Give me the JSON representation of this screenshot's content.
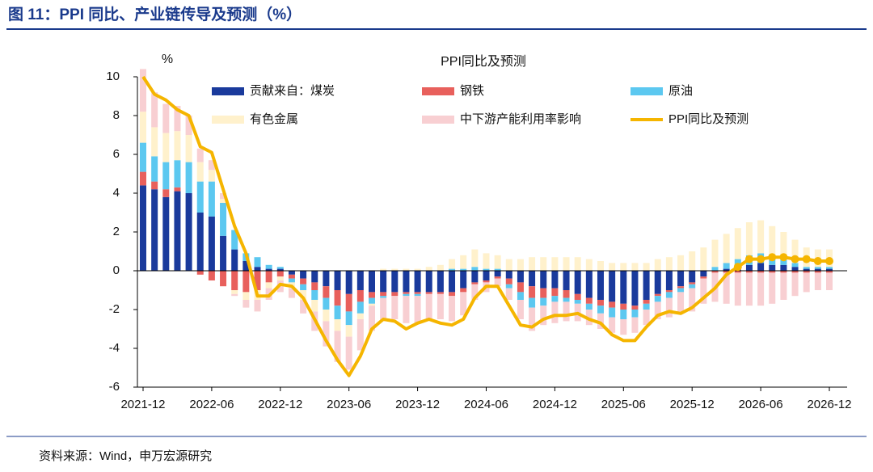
{
  "header": {
    "title": "图 11：PPI 同比、产业链传导及预测（%）"
  },
  "footer": {
    "source": "资料来源：Wind，申万宏源研究"
  },
  "chart_data": {
    "type": "bar-line",
    "title": "PPI同比及预测",
    "y_label": "%",
    "categories": [
      "2021-12",
      null,
      null,
      null,
      null,
      null,
      "2022-06",
      null,
      null,
      null,
      null,
      null,
      "2022-12",
      null,
      null,
      null,
      null,
      null,
      "2023-06",
      null,
      null,
      null,
      null,
      null,
      "2023-12",
      null,
      null,
      null,
      null,
      null,
      "2024-06",
      null,
      null,
      null,
      null,
      null,
      "2024-12",
      null,
      null,
      null,
      null,
      null,
      "2025-06",
      null,
      null,
      null,
      null,
      null,
      "2025-12",
      null,
      null,
      null,
      null,
      null,
      "2026-06",
      null,
      null,
      null,
      null,
      null,
      "2026-12"
    ],
    "ylim": [
      -6,
      10
    ],
    "yticks": [
      -6,
      -4,
      -2,
      0,
      2,
      4,
      6,
      8,
      10
    ],
    "series": [
      {
        "name": "贡献来自：煤炭",
        "color": "#1a3a9c",
        "values": [
          4.4,
          4.2,
          3.8,
          4.1,
          4.0,
          3.0,
          2.8,
          1.8,
          1.1,
          0.5,
          0.2,
          0.1,
          0.1,
          -0.2,
          -0.4,
          -0.6,
          -0.8,
          -1.0,
          -1.2,
          -1.0,
          -1.1,
          -1.1,
          -1.1,
          -1.1,
          -1.1,
          -1.1,
          -1.1,
          -1.1,
          -0.9,
          -0.6,
          -0.5,
          -0.3,
          -0.4,
          -0.6,
          -0.8,
          -0.9,
          -0.9,
          -1.0,
          -1.2,
          -1.4,
          -1.5,
          -1.6,
          -1.7,
          -1.8,
          -1.5,
          -1.2,
          -1.0,
          -0.8,
          -0.6,
          -0.3,
          0,
          0.1,
          0.2,
          0.3,
          0.4,
          0.3,
          0.3,
          0.2,
          0.1,
          0.1,
          0.1
        ]
      },
      {
        "name": "钢铁",
        "color": "#e8605c",
        "values": [
          0.7,
          0.4,
          0.4,
          0.2,
          0,
          -0.2,
          -0.5,
          -0.8,
          -1.0,
          -1.1,
          -1.0,
          -0.6,
          -0.3,
          -0.2,
          -0.3,
          -0.4,
          -0.6,
          -0.8,
          -0.9,
          -0.6,
          -0.3,
          -0.2,
          -0.2,
          -0.1,
          -0.1,
          -0.1,
          -0.1,
          -0.2,
          -0.2,
          -0.1,
          -0.1,
          -0.1,
          -0.3,
          -0.5,
          -0.6,
          -0.5,
          -0.4,
          -0.4,
          -0.3,
          -0.3,
          -0.3,
          -0.3,
          -0.3,
          -0.2,
          -0.2,
          -0.1,
          -0.1,
          -0.1,
          -0.1,
          -0.1,
          -0.1,
          -0.1,
          -0.1,
          -0.1,
          -0.1,
          -0.1,
          -0.1,
          -0.1,
          -0.1,
          -0.1,
          -0.1
        ]
      },
      {
        "name": "原油",
        "color": "#5cc8f0",
        "values": [
          1.5,
          1.3,
          1.4,
          1.4,
          1.6,
          1.6,
          1.8,
          1.7,
          1.0,
          0.4,
          0.5,
          0.2,
          0.1,
          -0.2,
          -0.3,
          -0.5,
          -0.6,
          -0.7,
          -0.7,
          -0.6,
          -0.3,
          -0.1,
          0,
          -0.1,
          -0.1,
          0,
          0,
          0.1,
          0.1,
          0.2,
          0.1,
          0.1,
          -0.2,
          -0.4,
          -0.5,
          -0.4,
          -0.3,
          -0.2,
          -0.2,
          -0.3,
          -0.4,
          -0.5,
          -0.5,
          -0.4,
          -0.3,
          -0.3,
          -0.3,
          -0.2,
          -0.2,
          0,
          0.2,
          0.3,
          0.4,
          0.5,
          0.5,
          0.4,
          0.3,
          0.2,
          0.1,
          0.1,
          0.1
        ]
      },
      {
        "name": "有色金属",
        "color": "#fff1cc",
        "values": [
          1.6,
          1.5,
          1.5,
          1.5,
          1.4,
          1.0,
          0.6,
          0.2,
          -0.2,
          -0.4,
          -0.5,
          -0.3,
          -0.2,
          -0.3,
          -0.5,
          -0.6,
          -0.6,
          -0.6,
          -0.6,
          -0.3,
          -0.1,
          0.1,
          0.1,
          0.1,
          0.1,
          0.2,
          0.3,
          0.5,
          0.7,
          0.9,
          0.8,
          0.7,
          0.6,
          0.6,
          0.7,
          0.7,
          0.7,
          0.7,
          0.7,
          0.6,
          0.5,
          0.4,
          0.4,
          0.4,
          0.4,
          0.6,
          0.7,
          0.8,
          1.0,
          1.2,
          1.4,
          1.5,
          1.6,
          1.7,
          1.7,
          1.6,
          1.4,
          1.2,
          1.0,
          0.9,
          0.9
        ]
      },
      {
        "name": "中下游产能利用率影响",
        "color": "#f8cfd2",
        "values": [
          2.2,
          1.8,
          1.5,
          1.3,
          1.0,
          0.7,
          0.5,
          0.3,
          -0.1,
          -0.4,
          -0.6,
          -0.6,
          -0.6,
          -0.5,
          -0.7,
          -1.0,
          -1.3,
          -1.6,
          -1.7,
          -1.6,
          -1.3,
          -1.2,
          -1.2,
          -1.4,
          -1.4,
          -1.3,
          -1.3,
          -1.3,
          -1.2,
          -0.8,
          -0.5,
          -0.4,
          -0.6,
          -1.0,
          -1.2,
          -1.0,
          -1.1,
          -1.0,
          -0.9,
          -0.8,
          -0.8,
          -0.8,
          -0.8,
          -0.8,
          -0.8,
          -0.9,
          -1.0,
          -1.1,
          -1.2,
          -1.3,
          -1.5,
          -1.6,
          -1.7,
          -1.7,
          -1.7,
          -1.6,
          -1.4,
          -1.2,
          -1.0,
          -0.9,
          -0.9
        ]
      },
      {
        "name": "PPI同比及预测",
        "color": "#f5b500",
        "type": "line",
        "values": [
          10,
          9.1,
          8.8,
          8.3,
          8.0,
          6.4,
          6.1,
          4.2,
          2.3,
          0.9,
          -1.3,
          -1.3,
          -0.7,
          -0.8,
          -1.4,
          -2.5,
          -3.6,
          -4.6,
          -5.4,
          -4.4,
          -3.0,
          -2.5,
          -2.6,
          -3.0,
          -2.7,
          -2.5,
          -2.7,
          -2.8,
          -2.5,
          -1.4,
          -0.8,
          -0.8,
          -1.8,
          -2.8,
          -2.9,
          -2.5,
          -2.3,
          -2.3,
          -2.2,
          -2.5,
          -2.7,
          -3.3,
          -3.6,
          -3.6,
          -2.9,
          -2.3,
          -2.1,
          -2.2,
          -1.9,
          -1.4,
          -0.9,
          -0.2,
          0.2,
          0.6,
          0.6,
          0.7,
          0.7,
          0.6,
          0.6,
          0.5,
          0.5
        ]
      }
    ]
  }
}
